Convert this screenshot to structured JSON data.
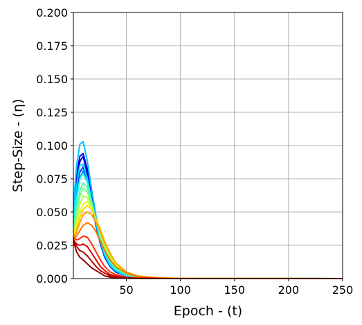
{
  "chart_data": {
    "type": "line",
    "xlabel": "Epoch - (t)",
    "ylabel": "Step-Size - (η)",
    "xlim": [
      1,
      250
    ],
    "ylim": [
      0,
      0.2
    ],
    "grid": true,
    "x_ticks": [
      50,
      100,
      150,
      200,
      250
    ],
    "x_tick_labels": [
      "50",
      "100",
      "150",
      "200",
      "250"
    ],
    "y_ticks": [
      0,
      0.025,
      0.05,
      0.075,
      0.1,
      0.125,
      0.15,
      0.175,
      0.2
    ],
    "y_tick_labels": [
      "0.000",
      "0.025",
      "0.050",
      "0.075",
      "0.100",
      "0.125",
      "0.150",
      "0.175",
      "0.200"
    ],
    "colormap": "jet",
    "series": [
      {
        "color": "#0000ad",
        "x": [
          1,
          4,
          7,
          10,
          14,
          18,
          22,
          26,
          30,
          35,
          40,
          50,
          60,
          80,
          100,
          250
        ],
        "y": [
          0.045,
          0.07,
          0.088,
          0.092,
          0.078,
          0.058,
          0.04,
          0.026,
          0.016,
          0.009,
          0.005,
          0.002,
          0.0008,
          0.0002,
          0.0001,
          0.0
        ]
      },
      {
        "color": "#0000ff",
        "x": [
          1,
          4,
          7,
          10,
          14,
          18,
          22,
          26,
          30,
          35,
          40,
          50,
          60,
          80,
          100,
          250
        ],
        "y": [
          0.05,
          0.078,
          0.092,
          0.094,
          0.082,
          0.062,
          0.044,
          0.029,
          0.018,
          0.01,
          0.006,
          0.002,
          0.0008,
          0.0002,
          0.0001,
          0.0
        ]
      },
      {
        "color": "#0030ff",
        "x": [
          1,
          4,
          7,
          10,
          14,
          18,
          22,
          26,
          30,
          35,
          40,
          50,
          60,
          80,
          100,
          250
        ],
        "y": [
          0.042,
          0.065,
          0.08,
          0.084,
          0.074,
          0.056,
          0.039,
          0.026,
          0.016,
          0.009,
          0.005,
          0.002,
          0.0007,
          0.0002,
          0.0001,
          0.0
        ]
      },
      {
        "color": "#0070ff",
        "x": [
          1,
          4,
          7,
          10,
          14,
          18,
          22,
          26,
          30,
          35,
          40,
          50,
          60,
          80,
          100,
          250
        ],
        "y": [
          0.04,
          0.06,
          0.075,
          0.081,
          0.072,
          0.056,
          0.04,
          0.027,
          0.017,
          0.01,
          0.006,
          0.002,
          0.0008,
          0.0002,
          0.0001,
          0.0
        ]
      },
      {
        "color": "#00c0ff",
        "x": [
          1,
          4,
          7,
          10,
          14,
          18,
          22,
          26,
          30,
          35,
          40,
          50,
          60,
          80,
          100,
          250
        ],
        "y": [
          0.055,
          0.085,
          0.101,
          0.103,
          0.088,
          0.066,
          0.047,
          0.031,
          0.019,
          0.011,
          0.006,
          0.002,
          0.0008,
          0.0002,
          0.0001,
          0.0
        ]
      },
      {
        "color": "#00e0ff",
        "x": [
          1,
          4,
          7,
          10,
          14,
          18,
          22,
          26,
          30,
          35,
          40,
          50,
          60,
          80,
          100,
          250
        ],
        "y": [
          0.045,
          0.07,
          0.085,
          0.086,
          0.075,
          0.058,
          0.042,
          0.028,
          0.018,
          0.01,
          0.006,
          0.002,
          0.0008,
          0.0002,
          0.0001,
          0.0
        ]
      },
      {
        "color": "#20ffd8",
        "x": [
          1,
          4,
          7,
          10,
          14,
          18,
          22,
          26,
          30,
          35,
          40,
          50,
          60,
          80,
          100,
          250
        ],
        "y": [
          0.04,
          0.06,
          0.075,
          0.079,
          0.072,
          0.058,
          0.043,
          0.03,
          0.02,
          0.012,
          0.007,
          0.003,
          0.001,
          0.0003,
          0.0001,
          0.0
        ]
      },
      {
        "color": "#50ffa8",
        "x": [
          1,
          4,
          7,
          10,
          14,
          18,
          22,
          26,
          30,
          35,
          40,
          50,
          60,
          80,
          100,
          250
        ],
        "y": [
          0.035,
          0.052,
          0.066,
          0.072,
          0.068,
          0.056,
          0.043,
          0.031,
          0.021,
          0.013,
          0.008,
          0.003,
          0.001,
          0.0003,
          0.0001,
          0.0
        ]
      },
      {
        "color": "#80ff78",
        "x": [
          1,
          4,
          7,
          10,
          14,
          18,
          22,
          26,
          30,
          35,
          40,
          50,
          60,
          80,
          100,
          250
        ],
        "y": [
          0.035,
          0.05,
          0.062,
          0.068,
          0.065,
          0.055,
          0.044,
          0.033,
          0.023,
          0.015,
          0.009,
          0.004,
          0.0015,
          0.0004,
          0.0001,
          0.0
        ]
      },
      {
        "color": "#b0ff48",
        "x": [
          1,
          4,
          7,
          10,
          14,
          18,
          22,
          26,
          30,
          35,
          40,
          50,
          60,
          80,
          100,
          250
        ],
        "y": [
          0.03,
          0.045,
          0.056,
          0.062,
          0.061,
          0.054,
          0.044,
          0.034,
          0.025,
          0.016,
          0.01,
          0.004,
          0.0015,
          0.0004,
          0.0001,
          0.0
        ]
      },
      {
        "color": "#e0ff18",
        "x": [
          1,
          4,
          7,
          10,
          14,
          18,
          22,
          26,
          30,
          35,
          40,
          50,
          60,
          80,
          100,
          250
        ],
        "y": [
          0.032,
          0.042,
          0.05,
          0.056,
          0.058,
          0.053,
          0.045,
          0.036,
          0.027,
          0.018,
          0.011,
          0.005,
          0.002,
          0.0005,
          0.0001,
          0.0
        ]
      },
      {
        "color": "#ffd000",
        "x": [
          1,
          4,
          7,
          10,
          14,
          18,
          22,
          26,
          30,
          35,
          40,
          50,
          60,
          80,
          100,
          250
        ],
        "y": [
          0.03,
          0.038,
          0.046,
          0.052,
          0.055,
          0.052,
          0.045,
          0.037,
          0.028,
          0.019,
          0.012,
          0.005,
          0.002,
          0.0005,
          0.0001,
          0.0
        ]
      },
      {
        "color": "#ffa000",
        "x": [
          1,
          4,
          7,
          10,
          14,
          18,
          22,
          26,
          30,
          35,
          40,
          50,
          60,
          80,
          100,
          250
        ],
        "y": [
          0.03,
          0.035,
          0.042,
          0.048,
          0.05,
          0.048,
          0.042,
          0.035,
          0.027,
          0.019,
          0.012,
          0.005,
          0.002,
          0.0005,
          0.0001,
          0.0
        ]
      },
      {
        "color": "#ff7000",
        "x": [
          1,
          4,
          7,
          10,
          14,
          18,
          22,
          26,
          30,
          35,
          40,
          50,
          60,
          80,
          100,
          250
        ],
        "y": [
          0.03,
          0.032,
          0.036,
          0.04,
          0.042,
          0.04,
          0.035,
          0.028,
          0.021,
          0.014,
          0.009,
          0.004,
          0.0015,
          0.0004,
          0.0001,
          0.0
        ]
      },
      {
        "color": "#ff3000",
        "x": [
          1,
          4,
          7,
          10,
          14,
          18,
          22,
          26,
          30,
          35,
          40,
          50,
          60,
          80,
          100,
          250
        ],
        "y": [
          0.031,
          0.029,
          0.03,
          0.032,
          0.031,
          0.026,
          0.02,
          0.014,
          0.009,
          0.005,
          0.003,
          0.001,
          0.0004,
          0.0001,
          0.0,
          0.0
        ]
      },
      {
        "color": "#e00000",
        "x": [
          1,
          4,
          7,
          10,
          14,
          18,
          22,
          26,
          30,
          35,
          40,
          50,
          60,
          80,
          100,
          250
        ],
        "y": [
          0.029,
          0.026,
          0.025,
          0.026,
          0.024,
          0.019,
          0.014,
          0.009,
          0.006,
          0.003,
          0.002,
          0.0008,
          0.0003,
          0.0001,
          0.0,
          0.0
        ]
      },
      {
        "color": "#b00000",
        "x": [
          1,
          4,
          7,
          10,
          14,
          18,
          22,
          26,
          30,
          35,
          40,
          50,
          60,
          80,
          100,
          250
        ],
        "y": [
          0.03,
          0.024,
          0.021,
          0.02,
          0.017,
          0.013,
          0.009,
          0.006,
          0.004,
          0.002,
          0.001,
          0.0005,
          0.0002,
          0.0,
          0.0,
          0.0
        ]
      },
      {
        "color": "#900000",
        "x": [
          1,
          4,
          7,
          10,
          14,
          18,
          22,
          26,
          30,
          35,
          40,
          50,
          60,
          80,
          100,
          250
        ],
        "y": [
          0.028,
          0.02,
          0.016,
          0.014,
          0.011,
          0.008,
          0.006,
          0.004,
          0.002,
          0.001,
          0.0006,
          0.0002,
          0.0001,
          0.0,
          0.0,
          0.0
        ]
      }
    ]
  }
}
